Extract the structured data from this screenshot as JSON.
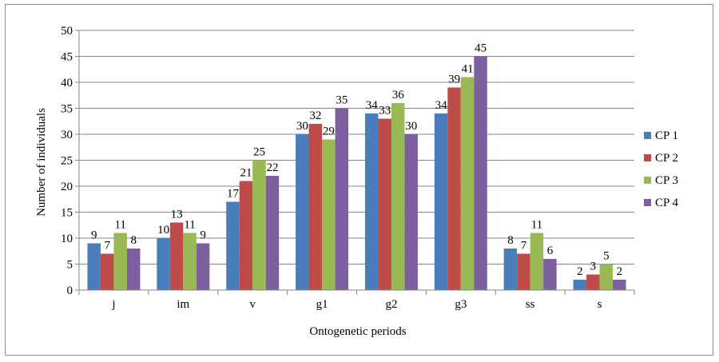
{
  "chart_data": {
    "type": "bar",
    "title": "",
    "xlabel": "Ontogenetic  periods",
    "ylabel": "Number of individuals",
    "ylim": [
      0,
      50
    ],
    "yticks": [
      0,
      5,
      10,
      15,
      20,
      25,
      30,
      35,
      40,
      45,
      50
    ],
    "grid": true,
    "legend_position": "right",
    "categories": [
      "j",
      "im",
      "v",
      "g1",
      "g2",
      "g3",
      "ss",
      "s"
    ],
    "series": [
      {
        "name": "CP 1",
        "color": "#4a7ebb",
        "values": [
          9,
          10,
          17,
          30,
          34,
          34,
          8,
          2
        ]
      },
      {
        "name": "CP 2",
        "color": "#be4b48",
        "values": [
          7,
          13,
          21,
          32,
          33,
          39,
          7,
          3
        ]
      },
      {
        "name": "CP 3",
        "color": "#98b954",
        "values": [
          11,
          11,
          25,
          29,
          36,
          41,
          11,
          5
        ]
      },
      {
        "name": "CP 4",
        "color": "#7d60a0",
        "values": [
          8,
          9,
          22,
          35,
          30,
          45,
          6,
          2
        ]
      }
    ]
  }
}
